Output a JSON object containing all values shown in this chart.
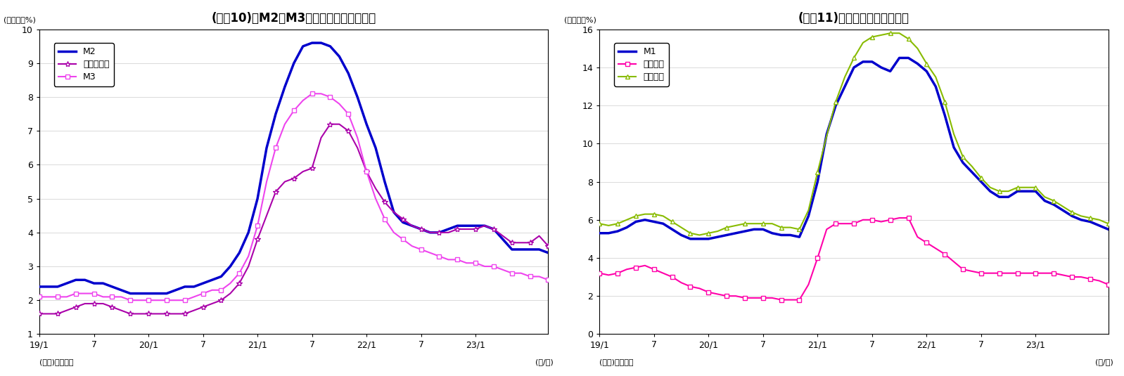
{
  "chart1": {
    "title": "(図褈10)　M2、M3、広義流動性の伸び率",
    "ylabel": "(前年比、%)",
    "xlabel_right": "(年/月)",
    "source": "(資料)日本銀行",
    "ylim": [
      1,
      10
    ],
    "yticks": [
      1,
      2,
      3,
      4,
      5,
      6,
      7,
      8,
      9,
      10
    ],
    "xtick_positions": [
      0,
      6,
      12,
      18,
      24,
      30,
      36,
      42,
      48
    ],
    "xtick_labels": [
      "19/1",
      "7",
      "20/1",
      "7",
      "21/1",
      "7",
      "22/1",
      "7",
      "23/1"
    ],
    "n_months": 57,
    "series": {
      "M2": {
        "color": "#0000CC",
        "linewidth": 2.5,
        "marker": null,
        "markersize": 0,
        "markevery": 1,
        "values": [
          2.4,
          2.4,
          2.4,
          2.5,
          2.6,
          2.6,
          2.5,
          2.5,
          2.4,
          2.3,
          2.2,
          2.2,
          2.2,
          2.2,
          2.2,
          2.3,
          2.4,
          2.4,
          2.5,
          2.6,
          2.7,
          3.0,
          3.4,
          4.0,
          5.0,
          6.5,
          7.5,
          8.3,
          9.0,
          9.5,
          9.6,
          9.6,
          9.5,
          9.2,
          8.7,
          8.0,
          7.2,
          6.5,
          5.5,
          4.6,
          4.3,
          4.2,
          4.1,
          4.0,
          4.0,
          4.1,
          4.2,
          4.2,
          4.2,
          4.2,
          4.1,
          3.8,
          3.5,
          3.5,
          3.5,
          3.5,
          3.4
        ]
      },
      "広義流動性": {
        "color": "#AA00AA",
        "linewidth": 1.5,
        "marker": "*",
        "markersize": 6,
        "markevery": 2,
        "values": [
          1.6,
          1.6,
          1.6,
          1.7,
          1.8,
          1.9,
          1.9,
          1.9,
          1.8,
          1.7,
          1.6,
          1.6,
          1.6,
          1.6,
          1.6,
          1.6,
          1.6,
          1.7,
          1.8,
          1.9,
          2.0,
          2.2,
          2.5,
          3.0,
          3.8,
          4.5,
          5.2,
          5.5,
          5.6,
          5.8,
          5.9,
          6.8,
          7.2,
          7.2,
          7.0,
          6.5,
          5.8,
          5.3,
          4.9,
          4.6,
          4.4,
          4.2,
          4.1,
          4.0,
          4.0,
          4.0,
          4.1,
          4.1,
          4.1,
          4.2,
          4.1,
          3.9,
          3.7,
          3.7,
          3.7,
          3.9,
          3.6
        ]
      },
      "M3": {
        "color": "#EE44EE",
        "linewidth": 1.5,
        "marker": "s",
        "markersize": 4,
        "markevery": 2,
        "values": [
          2.1,
          2.1,
          2.1,
          2.1,
          2.2,
          2.2,
          2.2,
          2.1,
          2.1,
          2.1,
          2.0,
          2.0,
          2.0,
          2.0,
          2.0,
          2.0,
          2.0,
          2.1,
          2.2,
          2.3,
          2.3,
          2.5,
          2.8,
          3.3,
          4.2,
          5.5,
          6.5,
          7.2,
          7.6,
          7.9,
          8.1,
          8.1,
          8.0,
          7.8,
          7.5,
          6.8,
          5.8,
          5.0,
          4.4,
          4.0,
          3.8,
          3.6,
          3.5,
          3.4,
          3.3,
          3.2,
          3.2,
          3.1,
          3.1,
          3.0,
          3.0,
          2.9,
          2.8,
          2.8,
          2.7,
          2.7,
          2.6
        ]
      }
    }
  },
  "chart2": {
    "title": "(図褈11)　現金・預金の伸び率",
    "ylabel": "(前年比、%)",
    "xlabel_right": "(年/月)",
    "source": "(資料)日本銀行",
    "ylim": [
      0,
      16
    ],
    "yticks": [
      0,
      2,
      4,
      6,
      8,
      10,
      12,
      14,
      16
    ],
    "xtick_positions": [
      0,
      6,
      12,
      18,
      24,
      30,
      36,
      42,
      48
    ],
    "xtick_labels": [
      "19/1",
      "7",
      "20/1",
      "7",
      "21/1",
      "7",
      "22/1",
      "7",
      "23/1"
    ],
    "n_months": 57,
    "series": {
      "M1": {
        "color": "#0000CC",
        "linewidth": 2.5,
        "marker": null,
        "markersize": 0,
        "markevery": 1,
        "values": [
          5.3,
          5.3,
          5.4,
          5.6,
          5.9,
          6.0,
          5.9,
          5.8,
          5.5,
          5.2,
          5.0,
          5.0,
          5.0,
          5.1,
          5.2,
          5.3,
          5.4,
          5.5,
          5.5,
          5.3,
          5.2,
          5.2,
          5.1,
          6.2,
          8.0,
          10.5,
          12.0,
          13.0,
          14.0,
          14.3,
          14.3,
          14.0,
          13.8,
          14.5,
          14.5,
          14.2,
          13.8,
          13.0,
          11.5,
          9.8,
          9.0,
          8.5,
          8.0,
          7.5,
          7.2,
          7.2,
          7.5,
          7.5,
          7.5,
          7.0,
          6.8,
          6.5,
          6.2,
          6.0,
          5.9,
          5.7,
          5.5
        ]
      },
      "現金通貨": {
        "color": "#FF00AA",
        "linewidth": 1.5,
        "marker": "s",
        "markersize": 4,
        "markevery": 2,
        "values": [
          3.2,
          3.1,
          3.2,
          3.4,
          3.5,
          3.6,
          3.4,
          3.2,
          3.0,
          2.7,
          2.5,
          2.4,
          2.2,
          2.1,
          2.0,
          2.0,
          1.9,
          1.9,
          1.9,
          1.9,
          1.8,
          1.8,
          1.8,
          2.6,
          4.0,
          5.5,
          5.8,
          5.8,
          5.8,
          6.0,
          6.0,
          5.9,
          6.0,
          6.1,
          6.1,
          5.1,
          4.8,
          4.5,
          4.2,
          3.8,
          3.4,
          3.3,
          3.2,
          3.2,
          3.2,
          3.2,
          3.2,
          3.2,
          3.2,
          3.2,
          3.2,
          3.1,
          3.0,
          3.0,
          2.9,
          2.8,
          2.6
        ]
      },
      "預金通貨": {
        "color": "#88BB00",
        "linewidth": 1.5,
        "marker": "^",
        "markersize": 5,
        "markevery": 2,
        "values": [
          5.8,
          5.7,
          5.8,
          6.0,
          6.2,
          6.3,
          6.3,
          6.2,
          5.9,
          5.6,
          5.3,
          5.2,
          5.3,
          5.4,
          5.6,
          5.7,
          5.8,
          5.8,
          5.8,
          5.8,
          5.6,
          5.6,
          5.5,
          6.5,
          8.5,
          10.4,
          12.2,
          13.5,
          14.5,
          15.3,
          15.6,
          15.7,
          15.8,
          15.8,
          15.5,
          15.0,
          14.2,
          13.5,
          12.2,
          10.5,
          9.3,
          8.8,
          8.2,
          7.7,
          7.5,
          7.5,
          7.7,
          7.7,
          7.7,
          7.2,
          7.0,
          6.7,
          6.4,
          6.2,
          6.1,
          6.0,
          5.8
        ]
      }
    }
  },
  "border_color": "#000000",
  "bg_color": "#ffffff",
  "grid_color": "#cccccc"
}
